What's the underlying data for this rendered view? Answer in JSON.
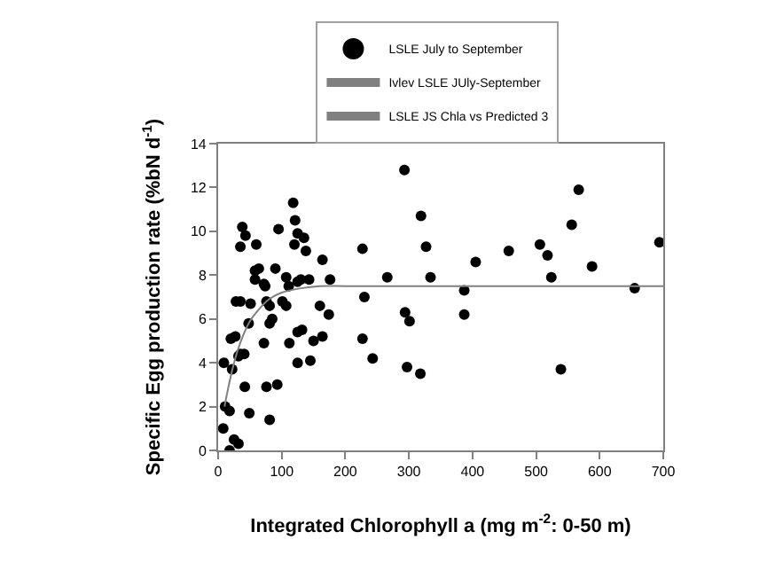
{
  "chart_data": {
    "type": "scatter",
    "xlabel": "Integrated Chlorophyll a (mg m$^{-2}$: 0-50 m)",
    "ylabel": "Specific Egg production rate (%bN d$^{-1}$)",
    "xlim": [
      0,
      700
    ],
    "xticks": [
      0,
      100,
      200,
      300,
      400,
      500,
      600,
      700
    ],
    "ylim": [
      0,
      14
    ],
    "yticks": [
      0,
      2,
      4,
      6,
      8,
      10,
      12,
      14
    ],
    "legend": "top",
    "marker": "circle",
    "series": [
      {
        "name": "LSLE July to September",
        "color": "#000000",
        "x": [
          8,
          9,
          11,
          18,
          18,
          22,
          20,
          27,
          25,
          32,
          28,
          35,
          32,
          35,
          41,
          35,
          38,
          43,
          42,
          48,
          51,
          49,
          58,
          64,
          58,
          60,
          72,
          74,
          72,
          76,
          81,
          85,
          81,
          76,
          81,
          90,
          93,
          95,
          101,
          107,
          107,
          111,
          112,
          118,
          121,
          120,
          125,
          125,
          125,
          125,
          132,
          135,
          130,
          138,
          143,
          145,
          150,
          160,
          164,
          164,
          174,
          176,
          227,
          230,
          227,
          243,
          266,
          293,
          319,
          327,
          334,
          294,
          301,
          297,
          318,
          387,
          387,
          405,
          457,
          506,
          518,
          524,
          539,
          556,
          567,
          588,
          655,
          694
        ],
        "values": [
          1.0,
          4.0,
          2.0,
          1.8,
          0,
          3.7,
          5.1,
          5.2,
          0.5,
          0.3,
          6.8,
          6.8,
          4.3,
          4.4,
          4.4,
          9.3,
          10.2,
          9.8,
          2.9,
          5.8,
          6.7,
          1.7,
          8.2,
          8.3,
          7.8,
          9.4,
          7.6,
          7.5,
          4.9,
          6.8,
          6.6,
          6.0,
          5.8,
          2.9,
          1.4,
          8.3,
          3.0,
          10.1,
          6.8,
          6.6,
          7.9,
          7.5,
          4.9,
          11.3,
          10.5,
          9.4,
          9.9,
          4.0,
          7.7,
          5.4,
          5.5,
          9.7,
          7.8,
          9.1,
          7.8,
          4.1,
          5.0,
          6.6,
          8.7,
          5.2,
          6.2,
          7.8,
          9.2,
          7.0,
          5.1,
          4.2,
          7.9,
          12.8,
          10.7,
          9.3,
          7.9,
          6.3,
          5.9,
          3.8,
          3.5,
          7.3,
          6.2,
          8.6,
          9.1,
          9.4,
          8.9,
          7.9,
          3.7,
          10.3,
          11.9,
          8.4,
          7.4,
          9.5
        ]
      },
      {
        "name": "Ivlev LSLE JUly-September",
        "type": "line",
        "color": "#808080",
        "marker": "none",
        "line_style": "solid",
        "x": [
          10,
          20,
          30,
          40,
          50,
          60,
          80,
          100,
          130,
          160,
          200,
          300,
          700
        ],
        "values": [
          2.0,
          3.4,
          4.5,
          5.3,
          5.9,
          6.3,
          6.9,
          7.2,
          7.4,
          7.5,
          7.5,
          7.5,
          7.5
        ]
      },
      {
        "name": "LSLE JS Chla vs Predicted 3",
        "type": "line",
        "color": "#808080",
        "marker": "none",
        "line_style": "solid",
        "values": [
          null
        ]
      }
    ]
  }
}
